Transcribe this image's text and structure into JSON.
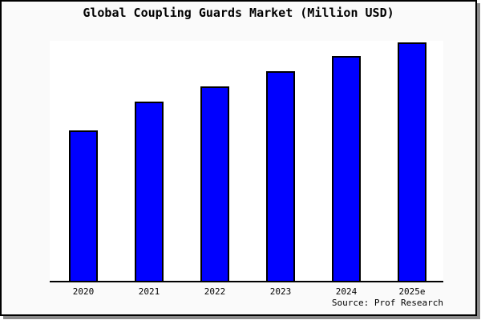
{
  "chart_data": {
    "type": "bar",
    "title": "Global Coupling Guards Market (Million USD)",
    "categories": [
      "2020",
      "2021",
      "2022",
      "2023",
      "2024",
      "2025e"
    ],
    "values": [
      188,
      224,
      243,
      262,
      281,
      298
    ],
    "values_note": "no y-axis or data labels shown; values are relative estimates from bar pixel heights",
    "xlabel": "",
    "ylabel": "",
    "ylim": [
      0,
      300
    ],
    "grid": false,
    "legend": "none",
    "colors": {
      "bar_fill": "#0000ff",
      "bar_border": "#000000",
      "axis": "#000000",
      "plot_bg": "#ffffff",
      "figure_bg": "#fafafa",
      "frame_border": "#000000",
      "shadow": "#8a8a8a",
      "text": "#000000"
    }
  },
  "footer": {
    "source": "Source: Prof Research"
  }
}
